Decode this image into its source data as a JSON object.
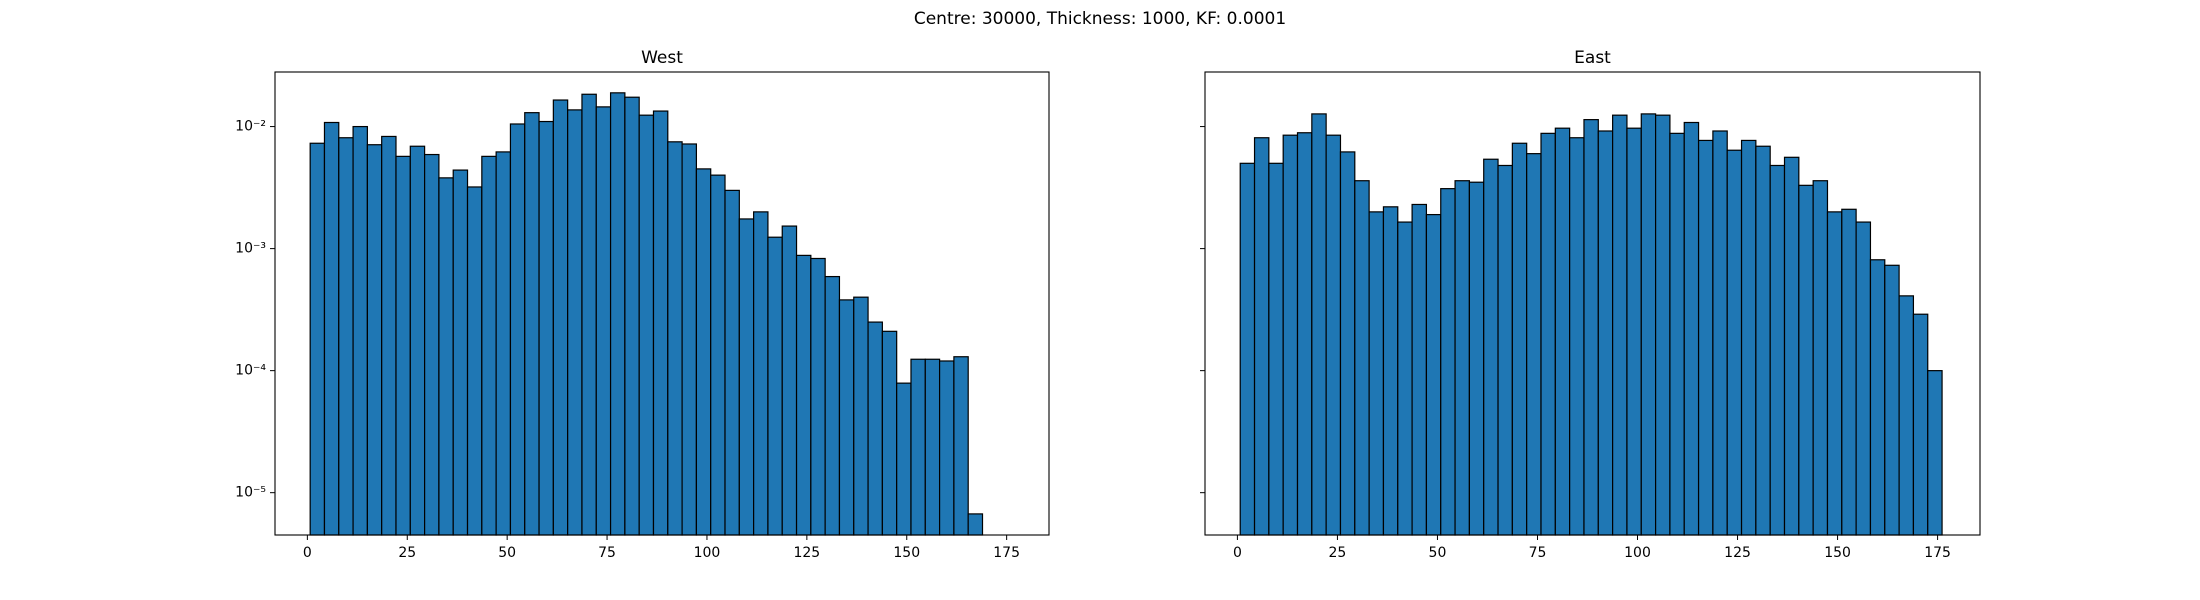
{
  "title": "Centre: 30000, Thickness: 1000, KF: 0.0001",
  "chart_data": [
    {
      "type": "histogram",
      "title": "West",
      "color": "#1f77b4",
      "edgecolor": "#000000",
      "log_y": true,
      "bins": [
        0.7,
        4.28,
        7.86,
        11.44,
        15.02,
        18.6,
        22.18,
        25.76,
        29.34,
        32.92,
        36.5,
        40.08,
        43.66,
        47.24,
        50.82,
        54.4,
        57.98,
        61.56,
        65.14,
        68.72,
        72.3,
        75.88,
        79.46,
        83.04,
        86.62,
        90.2,
        93.78,
        97.36,
        100.94,
        104.52,
        108.1,
        111.68,
        115.26,
        118.84,
        122.42,
        126,
        129.58,
        133.16,
        136.74,
        140.32,
        143.9,
        147.48,
        151.06,
        154.64,
        158.22,
        161.8,
        165.38,
        168.96,
        172.54,
        176.12
      ],
      "values": [
        0.0073,
        0.0108,
        0.0081,
        0.01,
        0.0071,
        0.0083,
        0.0057,
        0.0069,
        0.0059,
        0.0038,
        0.0044,
        0.0032,
        0.0057,
        0.0062,
        0.0105,
        0.013,
        0.011,
        0.0165,
        0.0137,
        0.0184,
        0.0145,
        0.0189,
        0.0174,
        0.0124,
        0.0134,
        0.0075,
        0.0072,
        0.0045,
        0.004,
        0.003,
        0.00175,
        0.002,
        0.00124,
        0.00153,
        0.00088,
        0.00083,
        0.00059,
        0.00038,
        0.0004,
        0.00025,
        0.00021,
        7.9e-05,
        0.000124,
        0.000124,
        0.00012,
        0.00013,
        6.7e-06,
        0,
        0
      ],
      "xlim": [
        -8.1,
        185.6
      ],
      "xticks": [
        0,
        25,
        50,
        75,
        100,
        125,
        150,
        175
      ],
      "ylim": [
        4.5e-06,
        0.028
      ],
      "yticks": [
        {
          "value": 1e-05,
          "label": "10⁻⁵"
        },
        {
          "value": 0.0001,
          "label": "10⁻⁴"
        },
        {
          "value": 0.001,
          "label": "10⁻³"
        },
        {
          "value": 0.01,
          "label": "10⁻²"
        }
      ]
    },
    {
      "type": "histogram",
      "title": "East",
      "color": "#1f77b4",
      "edgecolor": "#000000",
      "log_y": true,
      "bins": [
        0.7,
        4.28,
        7.86,
        11.44,
        15.02,
        18.6,
        22.18,
        25.76,
        29.34,
        32.92,
        36.5,
        40.08,
        43.66,
        47.24,
        50.82,
        54.4,
        57.98,
        61.56,
        65.14,
        68.72,
        72.3,
        75.88,
        79.46,
        83.04,
        86.62,
        90.2,
        93.78,
        97.36,
        100.94,
        104.52,
        108.1,
        111.68,
        115.26,
        118.84,
        122.42,
        126,
        129.58,
        133.16,
        136.74,
        140.32,
        143.9,
        147.48,
        151.06,
        154.64,
        158.22,
        161.8,
        165.38,
        168.96,
        172.54,
        176.12
      ],
      "values": [
        0.005,
        0.0081,
        0.005,
        0.0085,
        0.0089,
        0.0127,
        0.0085,
        0.0062,
        0.0036,
        0.002,
        0.0022,
        0.00165,
        0.0023,
        0.0019,
        0.0031,
        0.0036,
        0.0035,
        0.0054,
        0.0048,
        0.0073,
        0.006,
        0.0088,
        0.0097,
        0.0081,
        0.0114,
        0.0092,
        0.0124,
        0.0097,
        0.0127,
        0.0124,
        0.0088,
        0.0108,
        0.0077,
        0.0092,
        0.0064,
        0.0077,
        0.0069,
        0.0048,
        0.0056,
        0.0033,
        0.0036,
        0.002,
        0.0021,
        0.00165,
        0.00081,
        0.00073,
        0.00041,
        0.00029,
        0.0001
      ],
      "xlim": [
        -8.1,
        185.6
      ],
      "xticks": [
        0,
        25,
        50,
        75,
        100,
        125,
        150,
        175
      ],
      "ylim": [
        4.5e-06,
        0.028
      ],
      "yticks": [
        {
          "value": 1e-05
        },
        {
          "value": 0.0001
        },
        {
          "value": 0.001
        },
        {
          "value": 0.01
        }
      ]
    }
  ]
}
